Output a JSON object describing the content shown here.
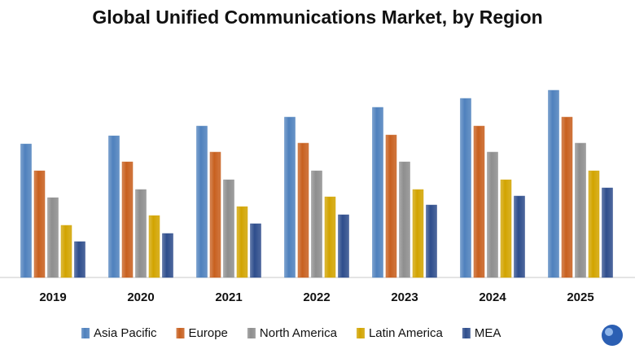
{
  "chart_data": {
    "type": "bar",
    "title": "Global Unified Communications Market, by Region",
    "categories": [
      "2019",
      "2020",
      "2021",
      "2022",
      "2023",
      "2024",
      "2025"
    ],
    "series": [
      {
        "name": "Asia Pacific",
        "color": "#4f81bd",
        "values": [
          164,
          174,
          186,
          197,
          209,
          220,
          230
        ]
      },
      {
        "name": "Europe",
        "color": "#c8601f",
        "values": [
          131,
          142,
          154,
          165,
          175,
          186,
          197
        ]
      },
      {
        "name": "North America",
        "color": "#8e8e8e",
        "values": [
          98,
          108,
          120,
          131,
          142,
          154,
          165
        ]
      },
      {
        "name": "Latin America",
        "color": "#d2a400",
        "values": [
          64,
          76,
          87,
          99,
          108,
          120,
          131
        ]
      },
      {
        "name": "MEA",
        "color": "#2e4d8c",
        "values": [
          44,
          54,
          66,
          77,
          89,
          100,
          110
        ]
      }
    ]
  }
}
